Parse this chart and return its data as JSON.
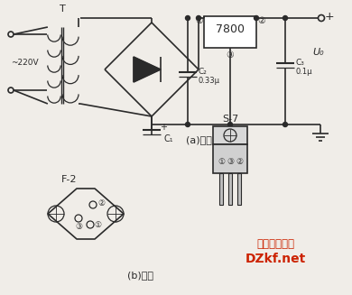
{
  "bg_color": "#f0ede8",
  "line_color": "#2a2a2a",
  "lw": 1.2,
  "tlw": 0.9,
  "title_a": "(a)电路",
  "title_b": "(b)外形",
  "label_220v": "~220V",
  "label_T": "T",
  "label_7800": "7800",
  "label_C1": "C₁",
  "label_C2": "C₂",
  "label_C2b": "0.33μ",
  "label_C3": "C₃",
  "label_C3b": "0.1μ",
  "label_Uo": "U₀",
  "label_plus": "+",
  "label_F2": "F-2",
  "label_S7": "S-7",
  "watermark1": "电子开发社区",
  "watermark2": "DZkf.net",
  "wm_color": "#cc2200",
  "pin1": "①",
  "pin2": "②",
  "pin3": "③"
}
